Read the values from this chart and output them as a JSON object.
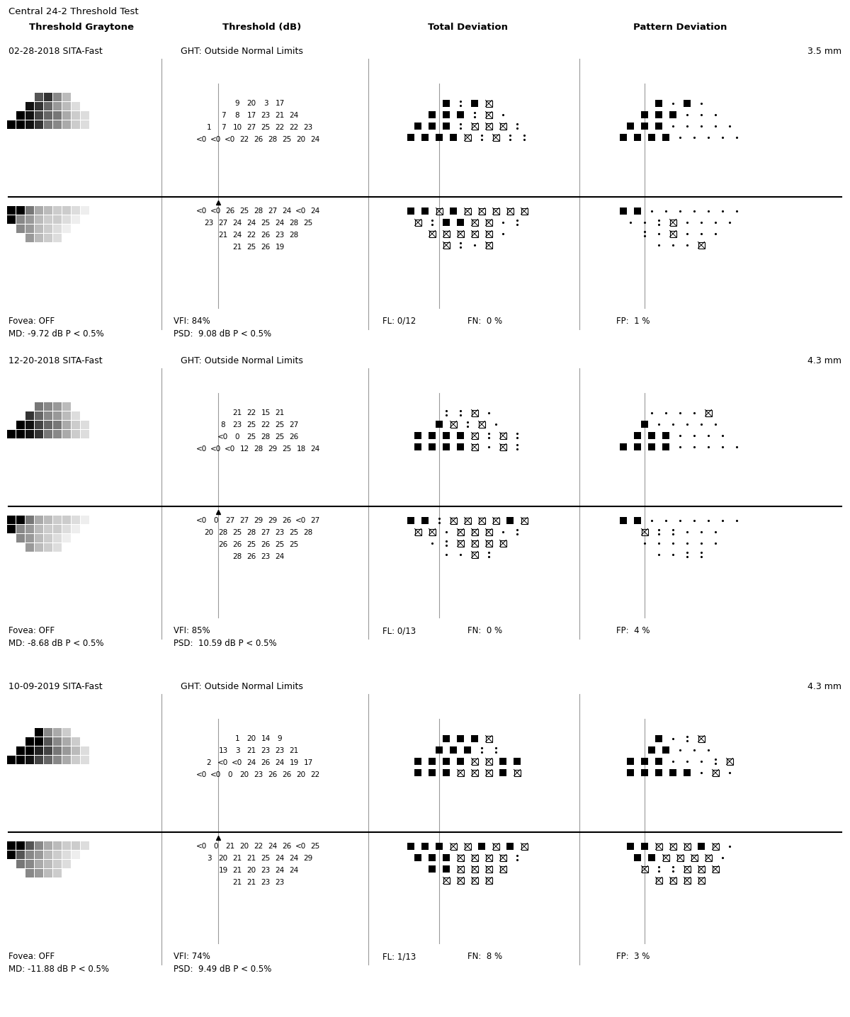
{
  "title": "Central 24-2 Threshold Test",
  "col_headers": [
    "Threshold Graytone",
    "Threshold (dB)",
    "Total Deviation",
    "Pattern Deviation"
  ],
  "sections": [
    {
      "date": "02-28-2018 SITA-Fast",
      "ght": "GHT: Outside Normal Limits",
      "mm": "3.5 mm",
      "fovea": "Fovea: OFF",
      "vfi": "VFI: 84%",
      "fl": "FL: 0/12",
      "fn": "FN:  0 %",
      "fp": "FP:  1 %",
      "md": "MD: -9.72 dB P < 0.5%",
      "psd": "PSD:  9.08 dB P < 0.5%",
      "thresh_upper": [
        [
          9,
          20,
          "3",
          "17"
        ],
        [
          7,
          8,
          17,
          23,
          21,
          24
        ],
        [
          1,
          7,
          10,
          27,
          25,
          22,
          22,
          23
        ],
        [
          "<0",
          "<0",
          "<0",
          22,
          26,
          28,
          25,
          20,
          24
        ]
      ],
      "thresh_lower": [
        [
          "<0",
          "<0",
          26,
          25,
          28,
          27,
          24,
          "<0",
          24
        ],
        [
          23,
          27,
          24,
          24,
          25,
          24,
          28,
          25
        ],
        [
          21,
          24,
          22,
          26,
          23,
          28
        ],
        [
          21,
          25,
          26,
          19
        ]
      ],
      "td_upper": [
        [
          "B",
          ":",
          "B",
          "X"
        ],
        [
          "B",
          "B",
          "B",
          ":",
          "X",
          "."
        ],
        [
          "B",
          "B",
          "B",
          ":",
          "X",
          "X",
          "X",
          ":"
        ],
        [
          "B",
          "B",
          "B",
          "B",
          "X",
          ":",
          "X",
          ":",
          ":"
        ]
      ],
      "td_lower": [
        [
          "B",
          "B",
          "X",
          "B",
          "X",
          "X",
          "X",
          "X",
          "X"
        ],
        [
          "X",
          ":",
          "B",
          "B",
          "X",
          "X",
          ".",
          ":"
        ],
        [
          "X",
          "X",
          "X",
          "X",
          "X",
          "."
        ],
        [
          "X",
          ":",
          ".",
          "X"
        ]
      ],
      "pd_upper": [
        [
          "B",
          ".",
          "B",
          "."
        ],
        [
          "B",
          "B",
          "B",
          ".",
          ".",
          "."
        ],
        [
          "B",
          "B",
          "B",
          ".",
          ".",
          ".",
          ".",
          "."
        ],
        [
          "B",
          "B",
          "B",
          "B",
          ".",
          ".",
          ".",
          ".",
          "."
        ]
      ],
      "pd_lower": [
        [
          "B",
          "B",
          ".",
          ".",
          ".",
          ".",
          ".",
          ".",
          "."
        ],
        [
          ".",
          ".",
          ":",
          "X",
          ".",
          ".",
          ".",
          "."
        ],
        [
          ":",
          ".",
          "X",
          ".",
          ".",
          "."
        ],
        [
          ".",
          ".",
          ".",
          "X"
        ]
      ],
      "gt_upper_shades": [
        [
          "#555",
          "#333",
          "#888",
          "#bbb"
        ],
        [
          "#111",
          "#333",
          "#666",
          "#999",
          "#bbb",
          "#ddd"
        ],
        [
          "#000",
          "#111",
          "#444",
          "#666",
          "#777",
          "#aaa",
          "#ccc",
          "#ddd"
        ],
        [
          "#000",
          "#000",
          "#111",
          "#333",
          "#777",
          "#888",
          "#aaa",
          "#ccc",
          "#ddd"
        ]
      ],
      "gt_lower_shades": [
        [
          "#000",
          "#000",
          "#777",
          "#aaa",
          "#bbb",
          "#ccc",
          "#ccc",
          "#ddd",
          "#eee"
        ],
        [
          "#000",
          "#888",
          "#999",
          "#bbb",
          "#ccc",
          "#ccc",
          "#ddd",
          "#eee"
        ],
        [
          "#888",
          "#999",
          "#bbb",
          "#ccc",
          "#ddd",
          "#eee"
        ],
        [
          "#999",
          "#bbb",
          "#ccc",
          "#ddd"
        ]
      ]
    },
    {
      "date": "12-20-2018 SITA-Fast",
      "ght": "GHT: Outside Normal Limits",
      "mm": "4.3 mm",
      "fovea": "Fovea: OFF",
      "vfi": "VFI: 85%",
      "fl": "FL: 0/13",
      "fn": "FN:  0 %",
      "fp": "FP:  4 %",
      "md": "MD: -8.68 dB P < 0.5%",
      "psd": "PSD:  10.59 dB P < 0.5%",
      "thresh_upper": [
        [
          21,
          22,
          15,
          21
        ],
        [
          8,
          23,
          25,
          22,
          25,
          27
        ],
        [
          "<0",
          0,
          25,
          28,
          25,
          26
        ],
        [
          "<0",
          "<0",
          "<0",
          12,
          28,
          29,
          25,
          18,
          24
        ]
      ],
      "thresh_lower": [
        [
          "<0",
          0,
          27,
          27,
          29,
          29,
          26,
          "<0",
          27
        ],
        [
          20,
          28,
          25,
          28,
          27,
          23,
          25,
          28
        ],
        [
          26,
          26,
          25,
          26,
          25,
          25
        ],
        [
          28,
          26,
          23,
          24
        ]
      ],
      "td_upper": [
        [
          ":",
          ":",
          "X",
          "."
        ],
        [
          "B",
          "X",
          ":",
          "X",
          "."
        ],
        [
          "B",
          "B",
          "B",
          "B",
          "X",
          ":",
          "X",
          ":"
        ],
        [
          "B",
          "B",
          "B",
          "B",
          "X",
          ".",
          "X",
          ":"
        ]
      ],
      "td_lower": [
        [
          "B",
          "B",
          ":",
          "X",
          "X",
          "X",
          "X",
          "B",
          "X"
        ],
        [
          "X",
          "X",
          ".",
          "X",
          "X",
          "X",
          ".",
          ":"
        ],
        [
          ".",
          ":",
          "X",
          "X",
          "X",
          "X"
        ],
        [
          ".",
          ".",
          "X",
          ":"
        ]
      ],
      "pd_upper": [
        [
          ".",
          ".",
          ".",
          ".",
          "X"
        ],
        [
          "B",
          ".",
          ".",
          ".",
          ".",
          "."
        ],
        [
          "B",
          "B",
          "B",
          ".",
          ".",
          ".",
          "."
        ],
        [
          "B",
          "B",
          "B",
          "B",
          ".",
          ".",
          ".",
          ".",
          "."
        ]
      ],
      "pd_lower": [
        [
          "B",
          "B",
          ".",
          ".",
          ".",
          ".",
          ".",
          ".",
          "."
        ],
        [
          "X",
          ":",
          ":",
          ".",
          ".",
          "."
        ],
        [
          ".",
          ".",
          ".",
          ".",
          ".",
          "."
        ],
        [
          ".",
          ".",
          ":",
          ":"
        ]
      ],
      "gt_upper_shades": [
        [
          "#777",
          "#888",
          "#999",
          "#bbb"
        ],
        [
          "#333",
          "#666",
          "#888",
          "#999",
          "#bbb",
          "#ddd"
        ],
        [
          "#000",
          "#111",
          "#444",
          "#666",
          "#777",
          "#aaa",
          "#ccc",
          "#ddd"
        ],
        [
          "#000",
          "#000",
          "#111",
          "#333",
          "#777",
          "#888",
          "#aaa",
          "#ccc",
          "#ddd"
        ]
      ],
      "gt_lower_shades": [
        [
          "#000",
          "#000",
          "#777",
          "#aaa",
          "#bbb",
          "#ccc",
          "#ccc",
          "#ddd",
          "#eee"
        ],
        [
          "#000",
          "#888",
          "#999",
          "#bbb",
          "#ccc",
          "#ccc",
          "#ddd",
          "#eee"
        ],
        [
          "#888",
          "#999",
          "#bbb",
          "#ccc",
          "#ddd",
          "#eee"
        ],
        [
          "#999",
          "#bbb",
          "#ccc",
          "#ddd"
        ]
      ]
    },
    {
      "date": "10-09-2019 SITA-Fast",
      "ght": "GHT: Outside Normal Limits",
      "mm": "4.3 mm",
      "fovea": "Fovea: OFF",
      "vfi": "VFI: 74%",
      "fl": "FL: 1/13",
      "fn": "FN:  8 %",
      "fp": "FP:  3 %",
      "md": "MD: -11.88 dB P < 0.5%",
      "psd": "PSD:  9.49 dB P < 0.5%",
      "thresh_upper": [
        [
          1,
          20,
          14,
          9
        ],
        [
          13,
          3,
          21,
          23,
          23,
          21
        ],
        [
          2,
          "<0",
          "<0",
          24,
          26,
          24,
          19,
          17
        ],
        [
          "<0",
          "<0",
          0,
          20,
          23,
          26,
          26,
          20,
          22
        ]
      ],
      "thresh_lower": [
        [
          "<0",
          0,
          21,
          20,
          22,
          24,
          26,
          "<0",
          25
        ],
        [
          3,
          20,
          21,
          21,
          25,
          24,
          24,
          29
        ],
        [
          19,
          21,
          20,
          23,
          24,
          24
        ],
        [
          21,
          21,
          23,
          23
        ]
      ],
      "td_upper": [
        [
          "B",
          "B",
          "B",
          "X"
        ],
        [
          "B",
          "B",
          "B",
          ":",
          ":"
        ],
        [
          "B",
          "B",
          "B",
          "B",
          "X",
          "X",
          "B",
          "B"
        ],
        [
          "B",
          "B",
          "B",
          "X",
          "X",
          "X",
          "B",
          "X"
        ]
      ],
      "td_lower": [
        [
          "B",
          "B",
          "B",
          "X",
          "X",
          "B",
          "X",
          "B",
          "X"
        ],
        [
          "B",
          "B",
          "B",
          "X",
          "X",
          "X",
          "X",
          ":"
        ],
        [
          "B",
          "B",
          "X",
          "X",
          "X",
          "X"
        ],
        [
          "X",
          "X",
          "X",
          "X"
        ]
      ],
      "pd_upper": [
        [
          "B",
          ".",
          ":",
          "X"
        ],
        [
          "B",
          "B",
          ".",
          ".",
          "."
        ],
        [
          "B",
          "B",
          "B",
          ".",
          ".",
          ".",
          ":",
          "X"
        ],
        [
          "B",
          "B",
          "B",
          "B",
          "B",
          ".",
          "X",
          "."
        ]
      ],
      "pd_lower": [
        [
          "B",
          "B",
          "X",
          "X",
          "X",
          "B",
          "X",
          "."
        ],
        [
          "B",
          "B",
          "X",
          "X",
          "X",
          "X",
          "."
        ],
        [
          "X",
          ":",
          ":",
          "X",
          "X",
          "X"
        ],
        [
          "X",
          "X",
          "X",
          "X"
        ]
      ],
      "gt_upper_shades": [
        [
          "#000",
          "#888",
          "#aaa",
          "#ccc"
        ],
        [
          "#000",
          "#000",
          "#555",
          "#888",
          "#aaa",
          "#ccc"
        ],
        [
          "#000",
          "#000",
          "#222",
          "#444",
          "#777",
          "#999",
          "#bbb",
          "#ddd"
        ],
        [
          "#000",
          "#000",
          "#111",
          "#444",
          "#666",
          "#888",
          "#aaa",
          "#ccc",
          "#ddd"
        ]
      ],
      "gt_lower_shades": [
        [
          "#000",
          "#000",
          "#555",
          "#888",
          "#aaa",
          "#bbb",
          "#ccc",
          "#ccc",
          "#ddd"
        ],
        [
          "#000",
          "#555",
          "#888",
          "#999",
          "#bbb",
          "#ccc",
          "#ddd",
          "#eee"
        ],
        [
          "#777",
          "#888",
          "#aaa",
          "#bbb",
          "#ccc",
          "#ddd"
        ],
        [
          "#888",
          "#999",
          "#bbb",
          "#ccc"
        ]
      ]
    }
  ]
}
